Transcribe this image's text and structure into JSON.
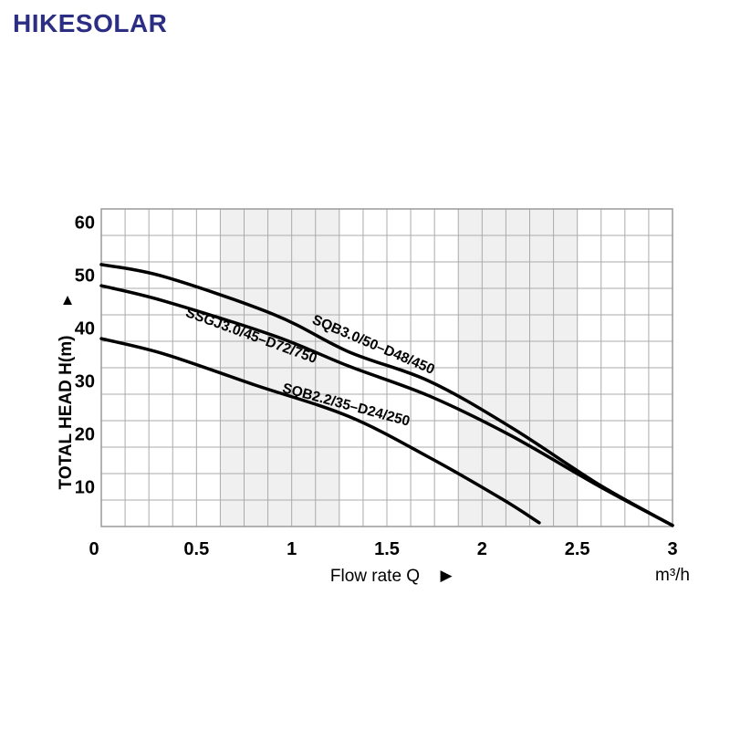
{
  "page": {
    "background": "#ffffff"
  },
  "logo": {
    "text": "HIKESOLAR",
    "color": "#2b2e83"
  },
  "icons": {
    "up_arrow": "▲",
    "right_arrow": "▶"
  },
  "chart_data": {
    "type": "line",
    "title": "",
    "xlabel": "Flow rate Q",
    "x_unit": "m³/h",
    "ylabel": "TOTAL HEAD H(m)",
    "xlim": [
      0,
      3
    ],
    "ylim": [
      2.5,
      62.5
    ],
    "x_ticks": [
      0,
      0.5,
      1,
      1.5,
      2,
      2.5,
      3
    ],
    "x_tick_labels": [
      "0",
      "0.5",
      "1",
      "1.5",
      "2",
      "2.5",
      "3"
    ],
    "y_ticks": [
      10,
      20,
      30,
      40,
      50,
      60
    ],
    "x_minor_step": 0.125,
    "y_minor_step": 5,
    "grid": true,
    "grid_color": "#ababab",
    "border_color": "#9a9a9a",
    "band_color": "#f0f0f0",
    "curve_color": "#000000",
    "shaded_bands": [
      [
        0.625,
        1.25
      ],
      [
        1.875,
        2.5
      ]
    ],
    "series": [
      {
        "name": "SQB3.0/50–D48/450",
        "points": [
          [
            0,
            52
          ],
          [
            0.33,
            49.7
          ],
          [
            0.91,
            42.5
          ],
          [
            1.3,
            35.5
          ],
          [
            1.72,
            30
          ],
          [
            2.15,
            21.3
          ],
          [
            2.62,
            10.3
          ],
          [
            3,
            2.7
          ]
        ],
        "label": {
          "text": "SQB3.0/50–D48/450",
          "x": 1.42,
          "h": 36.1,
          "angle": 23
        }
      },
      {
        "name": "SSGJ3.0/45–D72/750",
        "points": [
          [
            0,
            48
          ],
          [
            0.33,
            45.1
          ],
          [
            0.91,
            38.5
          ],
          [
            1.3,
            32.8
          ],
          [
            1.72,
            27.2
          ],
          [
            2.15,
            19.7
          ],
          [
            2.62,
            10
          ],
          [
            3,
            2.7
          ]
        ],
        "label": {
          "text": "SSGJ3.0/45–D72/750",
          "x": 0.78,
          "h": 37.8,
          "angle": 20
        }
      },
      {
        "name": "SQB2.2/35–D24/250",
        "points": [
          [
            0,
            38
          ],
          [
            0.33,
            35.1
          ],
          [
            0.81,
            29.2
          ],
          [
            1.3,
            23.3
          ],
          [
            1.72,
            15.6
          ],
          [
            2.1,
            7.8
          ],
          [
            2.3,
            3.2
          ]
        ],
        "label": {
          "text": "SQB2.2/35–D24/250",
          "x": 1.28,
          "h": 24.7,
          "angle": 15
        }
      }
    ]
  }
}
